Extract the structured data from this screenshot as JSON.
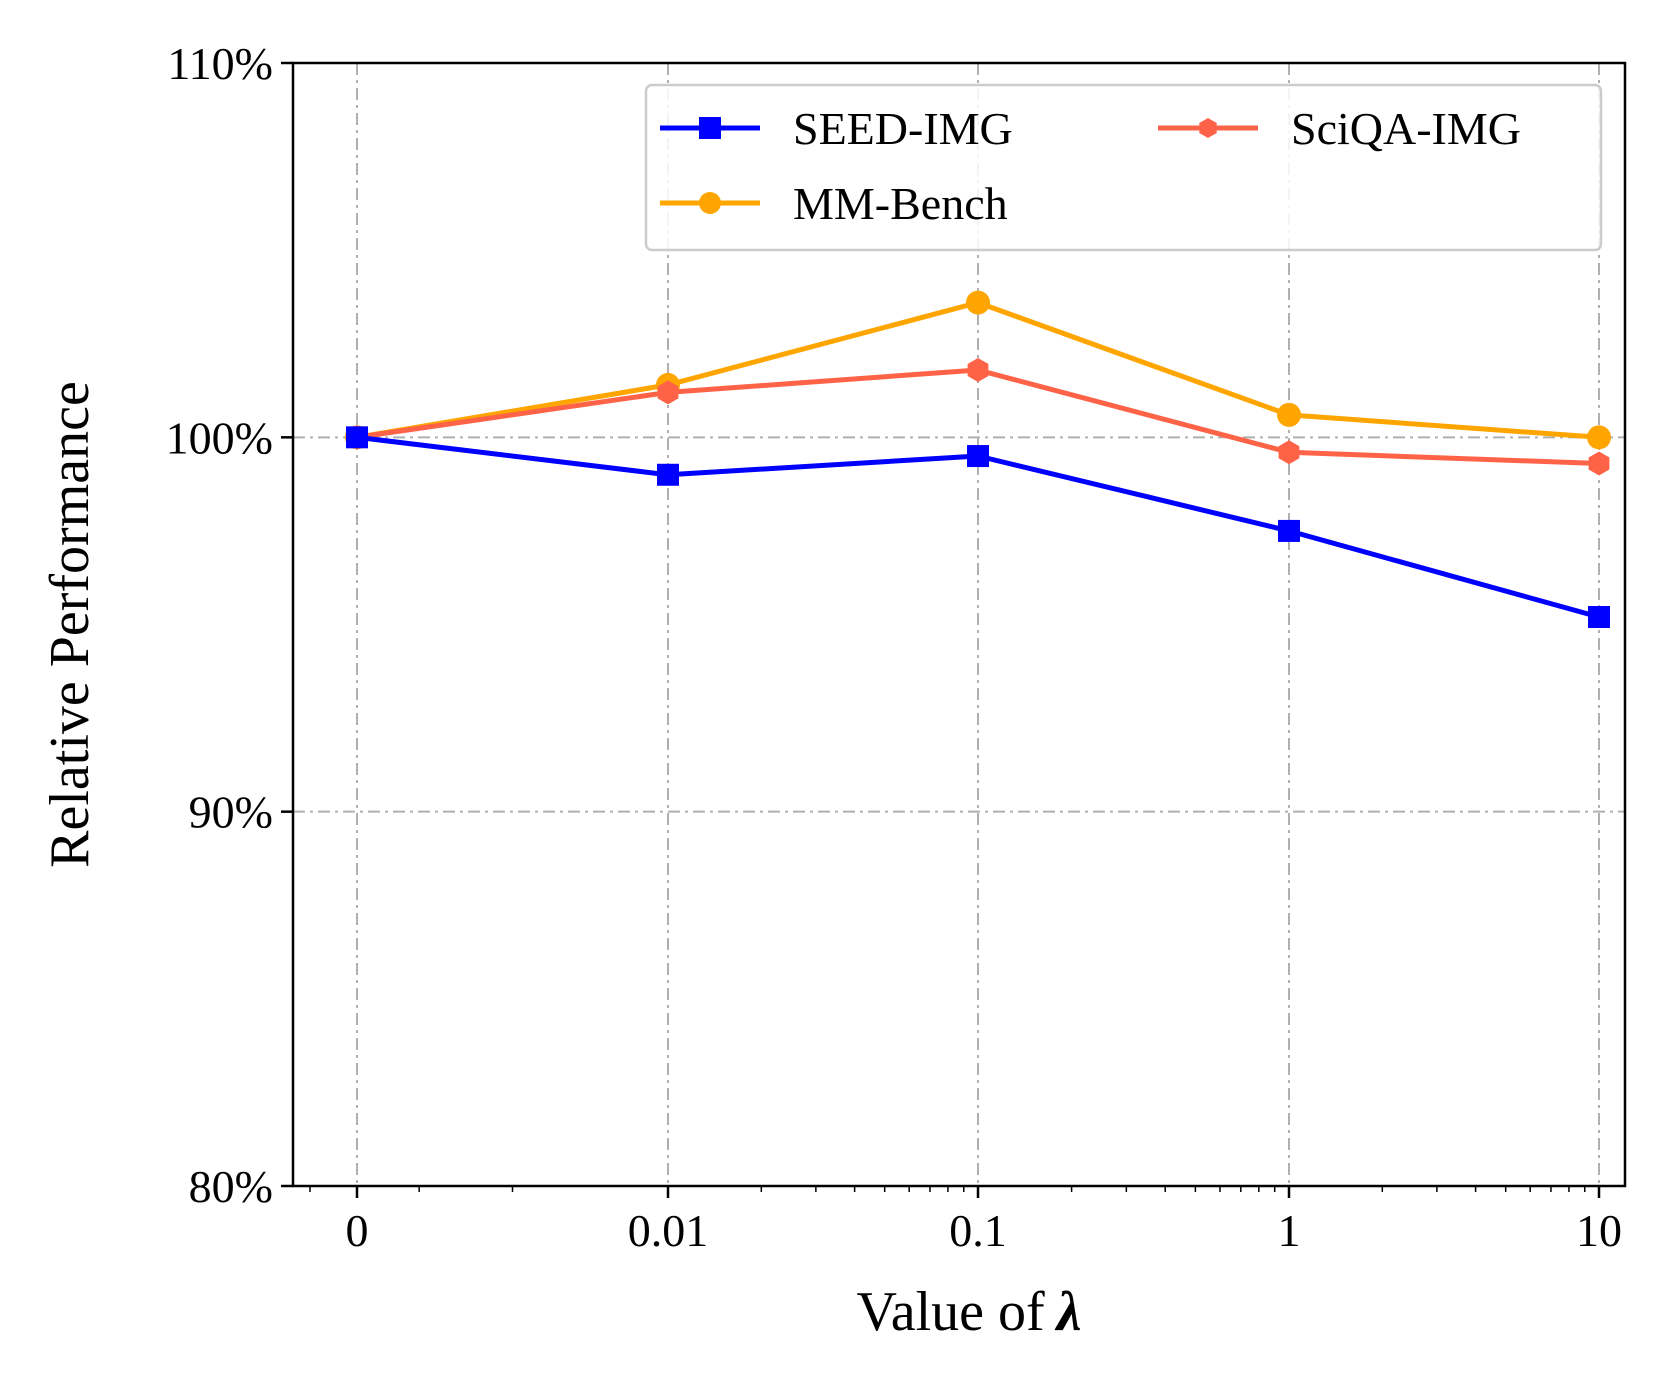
{
  "chart_data": {
    "type": "line",
    "xlabel": "Value of",
    "xlabel_symbol": "λ",
    "ylabel": "Relative Performance",
    "x": [
      "0",
      "0.01",
      "0.1",
      "1",
      "10"
    ],
    "ylim": [
      80,
      110
    ],
    "yticks": [
      80,
      90,
      100,
      110
    ],
    "ytick_labels": [
      "80%",
      "90%",
      "100%",
      "110%"
    ],
    "grid": true,
    "legend_position": "top-right",
    "series": [
      {
        "name": "SEED-IMG",
        "color": "#0000ff",
        "marker": "square",
        "values": [
          100.0,
          99.0,
          99.5,
          97.5,
          95.2
        ]
      },
      {
        "name": "MM-Bench",
        "color": "#ffa500",
        "marker": "circle",
        "values": [
          100.0,
          101.4,
          103.6,
          100.6,
          100.0
        ]
      },
      {
        "name": "SciQA-IMG",
        "color": "#ff6347",
        "marker": "hexagon",
        "values": [
          100.0,
          101.2,
          101.8,
          99.6,
          99.3
        ]
      }
    ]
  }
}
